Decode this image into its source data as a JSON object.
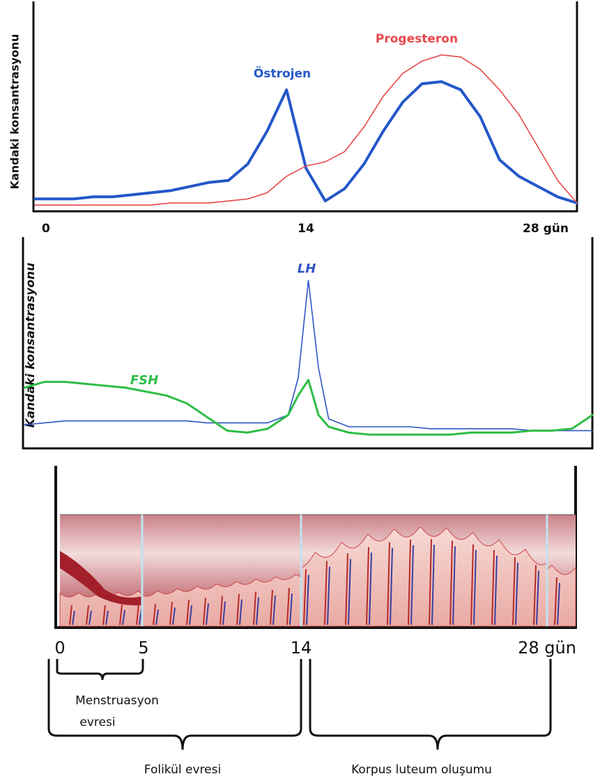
{
  "chart_data": [
    {
      "type": "line",
      "ylabel": "Kandaki konsantrasyonu",
      "x": [
        0,
        1,
        2,
        3,
        4,
        5,
        6,
        7,
        8,
        9,
        10,
        11,
        12,
        13,
        14,
        15,
        16,
        17,
        18,
        19,
        20,
        21,
        22,
        23,
        24,
        25,
        26,
        27,
        28
      ],
      "series": [
        {
          "name": "Östrojen",
          "color": "#2457c9",
          "values": [
            5,
            5,
            5,
            6,
            6,
            7,
            8,
            9,
            11,
            13,
            14,
            22,
            38,
            58,
            20,
            4,
            10,
            22,
            38,
            52,
            61,
            62,
            58,
            45,
            24,
            16,
            11,
            6,
            3
          ]
        },
        {
          "name": "Progesteron",
          "color": "#e8484a",
          "values": [
            2,
            2,
            2,
            2,
            2,
            2,
            2,
            3,
            3,
            3,
            4,
            5,
            8,
            16,
            21,
            23,
            28,
            40,
            55,
            66,
            72,
            75,
            74,
            68,
            58,
            46,
            30,
            14,
            3
          ]
        }
      ],
      "xlim": [
        0,
        28
      ],
      "ylim": [
        0,
        100
      ],
      "xticks": [
        0,
        14,
        {
          "value": 28,
          "label": "28 gün"
        }
      ]
    },
    {
      "type": "line",
      "ylabel": "Kandaki konsantrasyonu",
      "x": [
        0,
        1,
        2,
        3,
        4,
        5,
        6,
        7,
        8,
        9,
        10,
        11,
        12,
        13,
        13.5,
        14,
        14.5,
        15,
        16,
        17,
        18,
        19,
        20,
        21,
        22,
        23,
        24,
        25,
        26,
        27,
        28
      ],
      "series": [
        {
          "name": "LH",
          "color": "#2f55c4",
          "values": [
            11,
            12,
            13,
            13,
            13,
            13,
            13,
            13,
            13,
            12,
            12,
            12,
            12,
            16,
            35,
            85,
            40,
            14,
            10,
            10,
            10,
            10,
            9,
            9,
            9,
            9,
            9,
            8,
            8,
            8,
            8
          ]
        },
        {
          "name": "FSH",
          "color": "#2ebd47",
          "values": [
            30,
            33,
            33,
            32,
            31,
            30,
            28,
            26,
            22,
            15,
            8,
            7,
            9,
            16,
            26,
            34,
            16,
            10,
            7,
            6,
            6,
            6,
            6,
            6,
            7,
            7,
            7,
            8,
            8,
            9,
            16
          ]
        }
      ],
      "xlim": [
        0,
        28
      ],
      "ylim": [
        0,
        100
      ]
    }
  ],
  "diagram": {
    "day_labels": [
      "0",
      "5",
      "14",
      "28 gün"
    ],
    "phases": {
      "menstruation": [
        "Menstruasyon",
        "evresi"
      ],
      "follicular": "Folikül evresi",
      "luteal": "Korpus luteum oluşumu"
    }
  }
}
